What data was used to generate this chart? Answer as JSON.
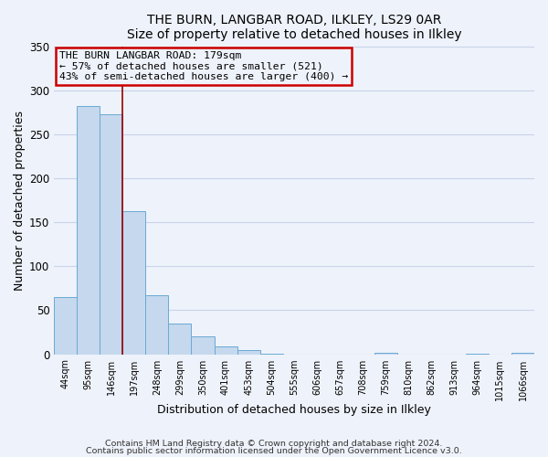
{
  "title": "THE BURN, LANGBAR ROAD, ILKLEY, LS29 0AR",
  "subtitle": "Size of property relative to detached houses in Ilkley",
  "xlabel": "Distribution of detached houses by size in Ilkley",
  "ylabel": "Number of detached properties",
  "bar_labels": [
    "44sqm",
    "95sqm",
    "146sqm",
    "197sqm",
    "248sqm",
    "299sqm",
    "350sqm",
    "401sqm",
    "453sqm",
    "504sqm",
    "555sqm",
    "606sqm",
    "657sqm",
    "708sqm",
    "759sqm",
    "810sqm",
    "862sqm",
    "913sqm",
    "964sqm",
    "1015sqm",
    "1066sqm"
  ],
  "bar_values": [
    65,
    282,
    273,
    163,
    67,
    35,
    20,
    9,
    5,
    1,
    0,
    0,
    0,
    0,
    2,
    0,
    0,
    0,
    1,
    0,
    2
  ],
  "bar_color": "#c5d8ee",
  "bar_edge_color": "#6aaad4",
  "vline_x_idx": 2.5,
  "vline_color": "#990000",
  "annotation_box_text": "THE BURN LANGBAR ROAD: 179sqm\n← 57% of detached houses are smaller (521)\n43% of semi-detached houses are larger (400) →",
  "box_edge_color": "#cc0000",
  "ylim": [
    0,
    350
  ],
  "yticks": [
    0,
    50,
    100,
    150,
    200,
    250,
    300,
    350
  ],
  "grid_color": "#c8d4e8",
  "footer_text1": "Contains HM Land Registry data © Crown copyright and database right 2024.",
  "footer_text2": "Contains public sector information licensed under the Open Government Licence v3.0.",
  "background_color": "#eef2fa"
}
